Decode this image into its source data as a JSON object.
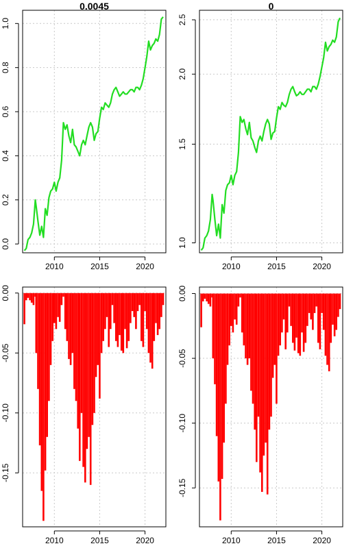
{
  "chart_data": [
    {
      "type": "line",
      "title": "0.0045",
      "xlabel": "",
      "ylabel": "",
      "x_range": [
        2006.5,
        2022.3
      ],
      "ylim": [
        -0.04,
        1.06
      ],
      "x_ticks": [
        {
          "value": 2010,
          "label": "2010"
        },
        {
          "value": 2015,
          "label": "2015"
        },
        {
          "value": 2020,
          "label": "2020"
        }
      ],
      "y_ticks": [
        {
          "value": 0.0,
          "label": "0.0"
        },
        {
          "value": 0.2,
          "label": "0.2"
        },
        {
          "value": 0.4,
          "label": "0.4"
        },
        {
          "value": 0.6,
          "label": "0.6"
        },
        {
          "value": 0.8,
          "label": "0.8"
        },
        {
          "value": 1.0,
          "label": "1.0"
        }
      ],
      "grid": true,
      "color": "#22dd22",
      "x": [
        2006.7,
        2006.9,
        2007.1,
        2007.3,
        2007.5,
        2007.7,
        2007.9,
        2008.0,
        2008.2,
        2008.4,
        2008.6,
        2008.8,
        2009.0,
        2009.2,
        2009.4,
        2009.6,
        2009.8,
        2010.0,
        2010.2,
        2010.4,
        2010.6,
        2010.8,
        2011.0,
        2011.2,
        2011.4,
        2011.6,
        2011.8,
        2012.0,
        2012.2,
        2012.4,
        2012.6,
        2012.8,
        2013.0,
        2013.2,
        2013.4,
        2013.6,
        2013.8,
        2014.0,
        2014.2,
        2014.4,
        2014.6,
        2014.8,
        2015.0,
        2015.2,
        2015.4,
        2015.6,
        2015.8,
        2016.0,
        2016.2,
        2016.4,
        2016.6,
        2016.8,
        2017.0,
        2017.2,
        2017.4,
        2017.6,
        2017.8,
        2018.0,
        2018.2,
        2018.4,
        2018.6,
        2018.8,
        2019.0,
        2019.2,
        2019.4,
        2019.6,
        2019.8,
        2020.0,
        2020.2,
        2020.4,
        2020.6,
        2020.8,
        2021.0,
        2021.2,
        2021.4,
        2021.6,
        2021.8,
        2022.0
      ],
      "values": [
        -0.03,
        -0.02,
        0.02,
        0.03,
        0.05,
        0.09,
        0.2,
        0.17,
        0.1,
        0.04,
        0.08,
        0.03,
        0.16,
        0.13,
        0.21,
        0.24,
        0.25,
        0.28,
        0.24,
        0.28,
        0.3,
        0.38,
        0.55,
        0.52,
        0.54,
        0.49,
        0.46,
        0.52,
        0.45,
        0.44,
        0.42,
        0.4,
        0.45,
        0.47,
        0.45,
        0.49,
        0.53,
        0.55,
        0.53,
        0.47,
        0.5,
        0.51,
        0.57,
        0.62,
        0.61,
        0.64,
        0.63,
        0.62,
        0.64,
        0.68,
        0.7,
        0.71,
        0.69,
        0.67,
        0.68,
        0.69,
        0.68,
        0.68,
        0.69,
        0.7,
        0.7,
        0.69,
        0.71,
        0.71,
        0.7,
        0.72,
        0.75,
        0.8,
        0.85,
        0.92,
        0.88,
        0.9,
        0.91,
        0.93,
        0.92,
        0.95,
        1.02,
        1.03
      ]
    },
    {
      "type": "line",
      "title": "0",
      "xlabel": "",
      "ylabel": "",
      "log_scale_y": true,
      "x_range": [
        2006.5,
        2022.3
      ],
      "ylim": [
        0.96,
        2.6
      ],
      "x_ticks": [
        {
          "value": 2010,
          "label": "2010"
        },
        {
          "value": 2015,
          "label": "2015"
        },
        {
          "value": 2020,
          "label": "2020"
        }
      ],
      "y_ticks": [
        {
          "value": 1.0,
          "label": "1.0"
        },
        {
          "value": 1.5,
          "label": "1.5"
        },
        {
          "value": 2.0,
          "label": "2.0"
        },
        {
          "value": 2.5,
          "label": "2.5"
        }
      ],
      "grid": true,
      "color": "#22dd22",
      "x": [
        2006.7,
        2006.9,
        2007.1,
        2007.3,
        2007.5,
        2007.7,
        2007.9,
        2008.0,
        2008.2,
        2008.4,
        2008.6,
        2008.8,
        2009.0,
        2009.2,
        2009.4,
        2009.6,
        2009.8,
        2010.0,
        2010.2,
        2010.4,
        2010.6,
        2010.8,
        2011.0,
        2011.2,
        2011.4,
        2011.6,
        2011.8,
        2012.0,
        2012.2,
        2012.4,
        2012.6,
        2012.8,
        2013.0,
        2013.2,
        2013.4,
        2013.6,
        2013.8,
        2014.0,
        2014.2,
        2014.4,
        2014.6,
        2014.8,
        2015.0,
        2015.2,
        2015.4,
        2015.6,
        2015.8,
        2016.0,
        2016.2,
        2016.4,
        2016.6,
        2016.8,
        2017.0,
        2017.2,
        2017.4,
        2017.6,
        2017.8,
        2018.0,
        2018.2,
        2018.4,
        2018.6,
        2018.8,
        2019.0,
        2019.2,
        2019.4,
        2019.6,
        2019.8,
        2020.0,
        2020.2,
        2020.4,
        2020.6,
        2020.8,
        2021.0,
        2021.2,
        2021.4,
        2021.6,
        2021.8,
        2022.0
      ],
      "values": [
        0.97,
        0.98,
        1.02,
        1.03,
        1.05,
        1.1,
        1.22,
        1.19,
        1.1,
        1.03,
        1.08,
        1.02,
        1.17,
        1.13,
        1.24,
        1.27,
        1.28,
        1.32,
        1.27,
        1.32,
        1.34,
        1.45,
        1.68,
        1.64,
        1.66,
        1.6,
        1.56,
        1.64,
        1.54,
        1.52,
        1.48,
        1.45,
        1.52,
        1.55,
        1.52,
        1.58,
        1.63,
        1.66,
        1.63,
        1.53,
        1.57,
        1.58,
        1.67,
        1.75,
        1.73,
        1.78,
        1.76,
        1.75,
        1.78,
        1.84,
        1.88,
        1.9,
        1.86,
        1.83,
        1.84,
        1.86,
        1.84,
        1.84,
        1.86,
        1.88,
        1.88,
        1.86,
        1.9,
        1.9,
        1.88,
        1.92,
        1.98,
        2.06,
        2.14,
        2.28,
        2.2,
        2.24,
        2.26,
        2.3,
        2.28,
        2.33,
        2.48,
        2.52
      ]
    },
    {
      "type": "bar",
      "title": "",
      "xlabel": "",
      "ylabel": "",
      "x_range": [
        2006.5,
        2022.3
      ],
      "ylim": [
        -0.195,
        0.005
      ],
      "x_ticks": [
        {
          "value": 2010,
          "label": "2010"
        },
        {
          "value": 2015,
          "label": "2015"
        },
        {
          "value": 2020,
          "label": "2020"
        }
      ],
      "y_ticks": [
        {
          "value": 0.0,
          "label": "0.00"
        },
        {
          "value": -0.05,
          "label": "-0.05"
        },
        {
          "value": -0.1,
          "label": "-0.10"
        },
        {
          "value": -0.15,
          "label": "-0.15"
        }
      ],
      "grid": true,
      "color": "#ff0000",
      "x": [
        2006.7,
        2006.9,
        2007.1,
        2007.3,
        2007.5,
        2007.7,
        2007.9,
        2008.0,
        2008.2,
        2008.4,
        2008.6,
        2008.8,
        2009.0,
        2009.2,
        2009.4,
        2009.6,
        2009.8,
        2010.0,
        2010.2,
        2010.4,
        2010.6,
        2010.8,
        2011.0,
        2011.2,
        2011.4,
        2011.6,
        2011.8,
        2012.0,
        2012.2,
        2012.4,
        2012.6,
        2012.8,
        2013.0,
        2013.2,
        2013.4,
        2013.6,
        2013.8,
        2014.0,
        2014.2,
        2014.4,
        2014.6,
        2014.8,
        2015.0,
        2015.2,
        2015.4,
        2015.6,
        2015.8,
        2016.0,
        2016.2,
        2016.4,
        2016.6,
        2016.8,
        2017.0,
        2017.2,
        2017.4,
        2017.6,
        2017.8,
        2018.0,
        2018.2,
        2018.4,
        2018.6,
        2018.8,
        2019.0,
        2019.2,
        2019.4,
        2019.6,
        2019.8,
        2020.0,
        2020.2,
        2020.4,
        2020.6,
        2020.8,
        2021.0,
        2021.2,
        2021.4,
        2021.6,
        2021.8,
        2022.0
      ],
      "values": [
        -0.026,
        -0.006,
        -0.004,
        -0.006,
        -0.008,
        -0.01,
        -0.003,
        -0.05,
        -0.08,
        -0.127,
        -0.165,
        -0.19,
        -0.148,
        -0.12,
        -0.09,
        -0.06,
        -0.04,
        -0.025,
        -0.03,
        -0.02,
        -0.024,
        -0.01,
        -0.003,
        -0.03,
        -0.04,
        -0.055,
        -0.06,
        -0.05,
        -0.08,
        -0.09,
        -0.113,
        -0.14,
        -0.1,
        -0.145,
        -0.158,
        -0.13,
        -0.12,
        -0.16,
        -0.11,
        -0.1,
        -0.07,
        -0.06,
        -0.088,
        -0.05,
        -0.04,
        -0.03,
        -0.02,
        -0.045,
        -0.03,
        -0.01,
        -0.025,
        -0.04,
        -0.045,
        -0.035,
        -0.048,
        -0.05,
        -0.03,
        -0.046,
        -0.04,
        -0.025,
        -0.015,
        -0.02,
        -0.03,
        -0.015,
        -0.01,
        -0.04,
        -0.045,
        -0.015,
        -0.03,
        -0.05,
        -0.058,
        -0.063,
        -0.04,
        -0.025,
        -0.035,
        -0.03,
        -0.02,
        -0.01
      ]
    },
    {
      "type": "bar",
      "title": "",
      "xlabel": "",
      "ylabel": "",
      "x_range": [
        2006.5,
        2022.3
      ],
      "ylim": [
        -0.18,
        0.005
      ],
      "x_ticks": [
        {
          "value": 2010,
          "label": "2010"
        },
        {
          "value": 2015,
          "label": "2015"
        },
        {
          "value": 2020,
          "label": "2020"
        }
      ],
      "y_ticks": [
        {
          "value": 0.0,
          "label": "0.00"
        },
        {
          "value": -0.05,
          "label": "-0.05"
        },
        {
          "value": -0.1,
          "label": "-0.10"
        },
        {
          "value": -0.15,
          "label": "-0.15"
        }
      ],
      "grid": true,
      "color": "#ff0000",
      "x": [
        2006.7,
        2006.9,
        2007.1,
        2007.3,
        2007.5,
        2007.7,
        2007.9,
        2008.0,
        2008.2,
        2008.4,
        2008.6,
        2008.8,
        2009.0,
        2009.2,
        2009.4,
        2009.6,
        2009.8,
        2010.0,
        2010.2,
        2010.4,
        2010.6,
        2010.8,
        2011.0,
        2011.2,
        2011.4,
        2011.6,
        2011.8,
        2012.0,
        2012.2,
        2012.4,
        2012.6,
        2012.8,
        2013.0,
        2013.2,
        2013.4,
        2013.6,
        2013.8,
        2014.0,
        2014.2,
        2014.4,
        2014.6,
        2014.8,
        2015.0,
        2015.2,
        2015.4,
        2015.6,
        2015.8,
        2016.0,
        2016.2,
        2016.4,
        2016.6,
        2016.8,
        2017.0,
        2017.2,
        2017.4,
        2017.6,
        2017.8,
        2018.0,
        2018.2,
        2018.4,
        2018.6,
        2018.8,
        2019.0,
        2019.2,
        2019.4,
        2019.6,
        2019.8,
        2020.0,
        2020.2,
        2020.4,
        2020.6,
        2020.8,
        2021.0,
        2021.2,
        2021.4,
        2021.6,
        2021.8,
        2022.0
      ],
      "values": [
        -0.026,
        -0.006,
        -0.004,
        -0.006,
        -0.008,
        -0.01,
        -0.003,
        -0.05,
        -0.07,
        -0.11,
        -0.145,
        -0.175,
        -0.143,
        -0.115,
        -0.085,
        -0.055,
        -0.04,
        -0.025,
        -0.03,
        -0.02,
        -0.024,
        -0.01,
        -0.003,
        -0.03,
        -0.04,
        -0.05,
        -0.055,
        -0.05,
        -0.075,
        -0.085,
        -0.105,
        -0.13,
        -0.095,
        -0.138,
        -0.153,
        -0.125,
        -0.115,
        -0.155,
        -0.105,
        -0.095,
        -0.065,
        -0.055,
        -0.085,
        -0.048,
        -0.04,
        -0.03,
        -0.02,
        -0.043,
        -0.03,
        -0.01,
        -0.025,
        -0.038,
        -0.044,
        -0.034,
        -0.046,
        -0.048,
        -0.03,
        -0.045,
        -0.038,
        -0.025,
        -0.015,
        -0.02,
        -0.028,
        -0.015,
        -0.01,
        -0.038,
        -0.043,
        -0.015,
        -0.028,
        -0.048,
        -0.055,
        -0.06,
        -0.038,
        -0.024,
        -0.033,
        -0.028,
        -0.018,
        -0.012
      ]
    }
  ]
}
